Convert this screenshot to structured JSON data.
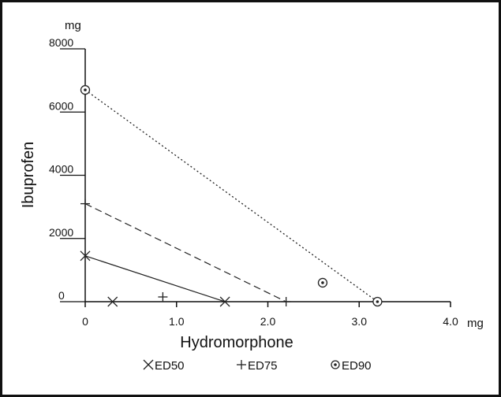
{
  "chart_data": {
    "type": "scatter",
    "xlabel": "Hydromorphone",
    "ylabel": "Ibuprofen",
    "x_unit": "mg",
    "y_unit": "mg",
    "xlim": [
      0,
      4.0
    ],
    "ylim": [
      0,
      8000
    ],
    "x_ticks": [
      0,
      1.0,
      2.0,
      3.0,
      4.0
    ],
    "x_tick_labels": [
      "0",
      "1.0",
      "2.0",
      "3.0",
      "4.0"
    ],
    "y_ticks": [
      0,
      2000,
      4000,
      6000,
      8000
    ],
    "y_tick_labels": [
      "0",
      "2000",
      "4000",
      "6000",
      "8000"
    ],
    "grid": false,
    "legend_position": "bottom",
    "series": [
      {
        "name": "ED50",
        "marker": "x",
        "line_style": "solid",
        "isobole": [
          [
            0,
            1450
          ],
          [
            1.53,
            0
          ]
        ],
        "points": [
          [
            0,
            1450
          ],
          [
            1.53,
            0
          ],
          [
            0.3,
            0
          ]
        ]
      },
      {
        "name": "ED75",
        "marker": "plus",
        "line_style": "dashed",
        "isobole": [
          [
            0,
            3100
          ],
          [
            2.2,
            0
          ]
        ],
        "points": [
          [
            0,
            3100
          ],
          [
            2.2,
            0
          ],
          [
            0.85,
            150
          ]
        ]
      },
      {
        "name": "ED90",
        "marker": "circle-dot",
        "line_style": "dotted",
        "isobole": [
          [
            0,
            6700
          ],
          [
            3.2,
            0
          ]
        ],
        "points": [
          [
            0,
            6700
          ],
          [
            3.2,
            0
          ],
          [
            2.6,
            600
          ]
        ]
      }
    ]
  }
}
